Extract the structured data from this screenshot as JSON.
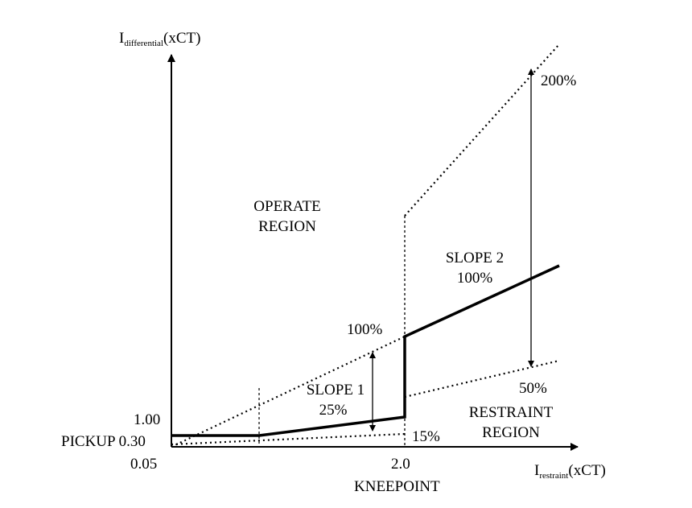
{
  "axes": {
    "y_label_main": "I",
    "y_label_sub": "differential",
    "y_label_unit": "(xCT)",
    "x_label_main": "I",
    "x_label_sub": "restraint",
    "x_label_unit": "(xCT)"
  },
  "ticks": {
    "y_1_00": "1.00",
    "y_pickup": "PICKUP 0.30",
    "y_0_05": "0.05",
    "x_2_0": "2.0",
    "x_kneepoint": "KNEEPOINT"
  },
  "regions": {
    "operate_line1": "OPERATE",
    "operate_line2": "REGION",
    "restraint_line1": "RESTRAINT",
    "restraint_line2": "REGION"
  },
  "slopes": {
    "slope1_line1": "SLOPE 1",
    "slope1_line2": "25%",
    "slope2_line1": "SLOPE 2",
    "slope2_line2": "100%"
  },
  "percent_labels": {
    "p100_left": "100%",
    "p15": "15%",
    "p200": "200%",
    "p50": "50%"
  },
  "colors": {
    "line": "#000000",
    "background": "#ffffff"
  }
}
